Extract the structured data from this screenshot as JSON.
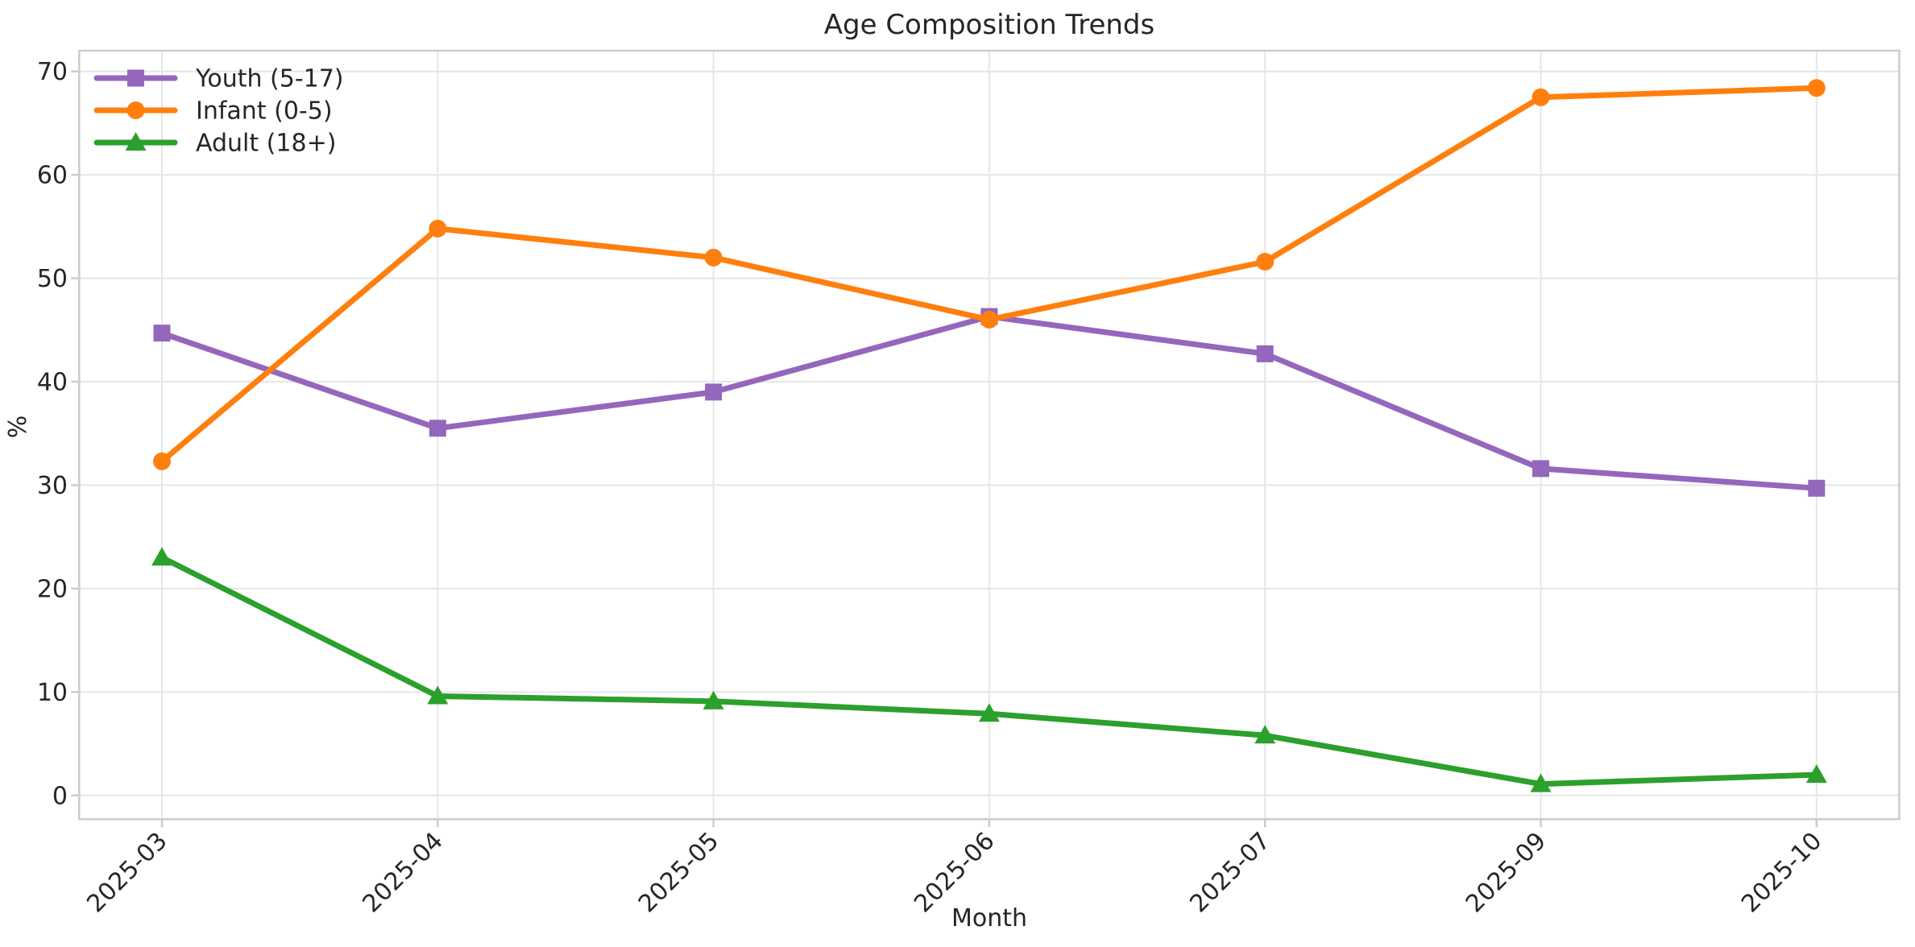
{
  "title": "Age Composition Trends",
  "chart_data": {
    "type": "line",
    "title": "Age Composition Trends",
    "xlabel": "Month",
    "ylabel": "%",
    "categories": [
      "2025-03",
      "2025-04",
      "2025-05",
      "2025-06",
      "2025-07",
      "2025-09",
      "2025-10"
    ],
    "series": [
      {
        "name": "Youth (5-17)",
        "color": "#9467bd",
        "marker": "square",
        "values": [
          44.7,
          35.5,
          39.0,
          46.3,
          42.7,
          31.6,
          29.7
        ]
      },
      {
        "name": "Infant (0-5)",
        "color": "#ff7f0e",
        "marker": "circle",
        "values": [
          32.3,
          54.8,
          52.0,
          46.0,
          51.6,
          67.5,
          68.4
        ]
      },
      {
        "name": "Adult (18+)",
        "color": "#2ca02c",
        "marker": "triangle",
        "values": [
          23.0,
          9.6,
          9.1,
          7.9,
          5.8,
          1.1,
          2.0
        ]
      }
    ],
    "y_ticks": [
      0,
      10,
      20,
      30,
      40,
      50,
      60,
      70
    ],
    "ylim": [
      -2.3,
      72
    ],
    "x_tick_rotation_deg": 45,
    "grid": true,
    "legend_position": "upper left",
    "colors": {
      "background": "#ffffff",
      "grid": "#e6e6e6",
      "spine": "#cccccc",
      "text": "#262626"
    }
  }
}
